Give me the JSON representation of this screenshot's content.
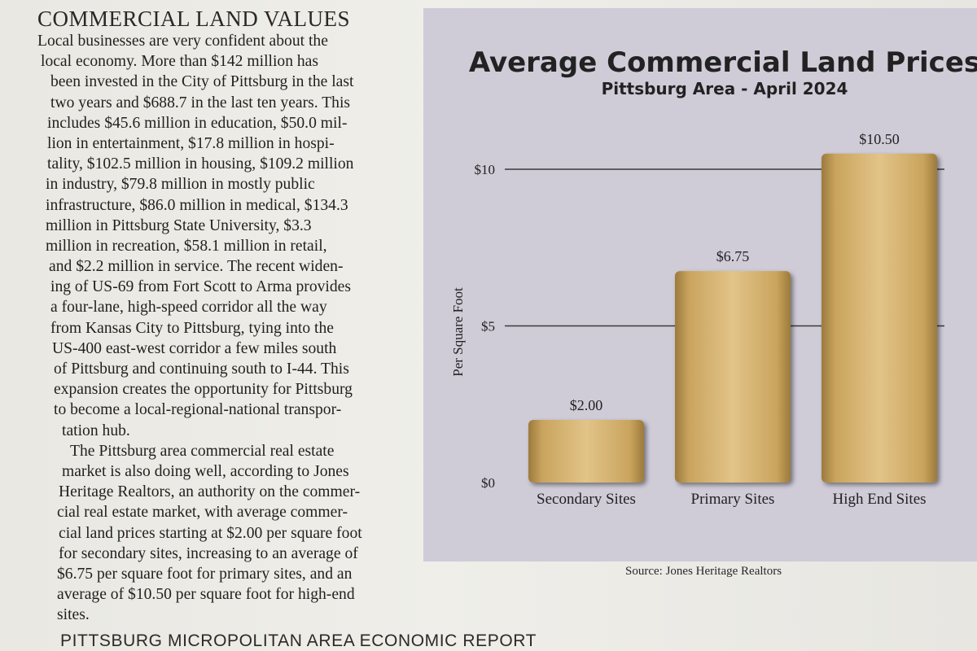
{
  "article": {
    "heading": "COMMERCIAL LAND VALUES",
    "lines": [
      "Local businesses are very confident about the",
      "local economy. More than $142 million has",
      "been invested in the City of Pittsburg in the last",
      "two years and $688.7 in the last ten years. This",
      "includes $45.6 million in education, $50.0 mil-",
      "lion in entertainment, $17.8 million in hospi-",
      "tality, $102.5 million in housing, $109.2 million",
      "in industry, $79.8 million in mostly public",
      "infrastructure, $86.0 million in medical, $134.3",
      "million in Pittsburg State University, $3.3",
      "million in recreation, $58.1 million in retail,",
      "and $2.2 million in service. The recent widen-",
      "ing of US-69 from Fort Scott to Arma provides",
      "a four-lane, high-speed corridor all the way",
      "from Kansas City to Pittsburg, tying into the",
      "US-400 east-west corridor a few miles south",
      "of Pittsburg and continuing south to I-44. This",
      "expansion creates the opportunity for Pittsburg",
      "to become a local-regional-national transpor-",
      "tation hub.",
      "The Pittsburg area commercial real estate",
      "market is also doing well, according to Jones",
      "Heritage Realtors, an authority on the commer-",
      "cial real estate market, with average commer-",
      "cial land prices starting at $2.00 per square foot",
      "for secondary sites, increasing to an average of",
      "$6.75 per square foot for primary sites, and an",
      "average of $10.50 per square foot for high-end",
      "sites."
    ]
  },
  "footer": {
    "title": "PITTSBURG MICROPOLITAN AREA ECONOMIC REPORT"
  },
  "colors": {
    "panel": "#cfccd8",
    "bar": "#c9a45e",
    "bar_light": "#e2c488",
    "bar_dark": "#9c7a3c",
    "grid": "#3a3838"
  },
  "chart_data": {
    "type": "bar",
    "title": "Average Commercial Land Prices",
    "subtitle": "Pittsburg Area - April 2024",
    "categories": [
      "Secondary Sites",
      "Primary Sites",
      "High End Sites"
    ],
    "values": [
      2.0,
      6.75,
      10.5
    ],
    "value_labels": [
      "$2.00",
      "$6.75",
      "$10.50"
    ],
    "ylabel": "Per Square Foot",
    "xlabel": "",
    "ylim": [
      0,
      10
    ],
    "yticks": [
      0,
      5,
      10
    ],
    "ytick_labels": [
      "$0",
      "$5",
      "$10"
    ],
    "grid": true,
    "source": "Source: Jones Heritage Realtors"
  }
}
